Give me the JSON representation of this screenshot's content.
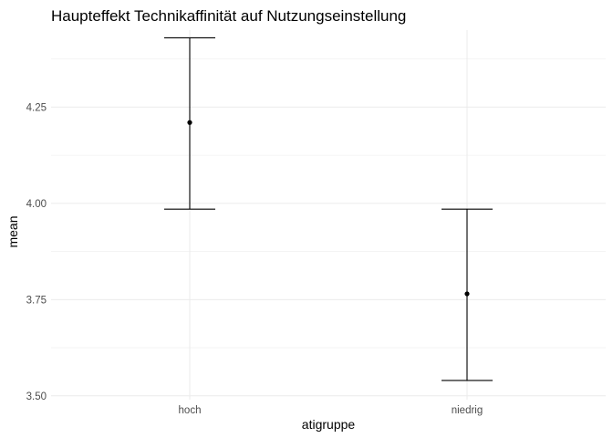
{
  "chart_data": {
    "type": "scatter",
    "title": "Haupteffekt Technikaffinität auf Nutzungseinstellung",
    "xlabel": "atigruppe",
    "ylabel": "mean",
    "categories": [
      "hoch",
      "niedrig"
    ],
    "series": [
      {
        "values": [
          4.21,
          3.765
        ],
        "error_lower": [
          3.985,
          3.54
        ],
        "error_upper": [
          4.43,
          3.985
        ]
      }
    ],
    "ylim": [
      3.49,
      4.45
    ],
    "yticks": [
      3.5,
      3.75,
      4.0,
      4.25
    ],
    "ytick_labels": [
      "3.50",
      "3.75",
      "4.00",
      "4.25"
    ],
    "grid": true,
    "colors": {
      "points": "#000000",
      "errorbars": "#000000",
      "grid": "#ebebeb"
    }
  }
}
